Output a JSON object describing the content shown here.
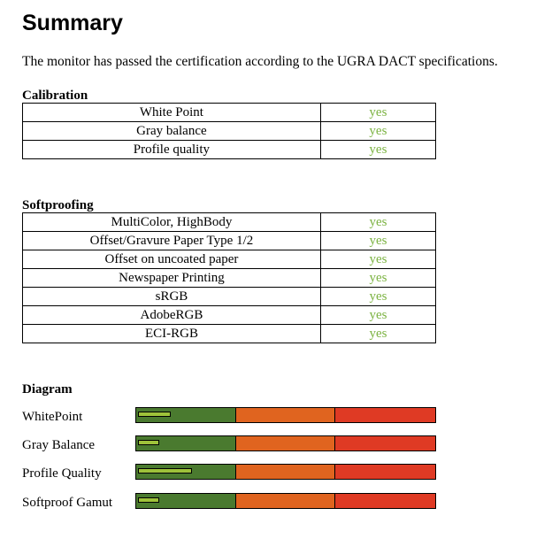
{
  "title": "Summary",
  "intro": "The monitor has passed the certification according to the UGRA DACT specifications.",
  "calibration": {
    "heading": "Calibration",
    "rows": [
      {
        "label": "White Point",
        "value": "yes"
      },
      {
        "label": "Gray balance",
        "value": "yes"
      },
      {
        "label": "Profile quality",
        "value": "yes"
      }
    ]
  },
  "softproofing": {
    "heading": "Softproofing",
    "rows": [
      {
        "label": "MultiColor, HighBody",
        "value": "yes"
      },
      {
        "label": "Offset/Gravure Paper Type 1/2",
        "value": "yes"
      },
      {
        "label": "Offset on uncoated paper",
        "value": "yes"
      },
      {
        "label": "Newspaper Printing",
        "value": "yes"
      },
      {
        "label": "sRGB",
        "value": "yes"
      },
      {
        "label": "AdobeRGB",
        "value": "yes"
      },
      {
        "label": "ECI-RGB",
        "value": "yes"
      }
    ]
  },
  "diagram": {
    "heading": "Diagram",
    "zone_colors": {
      "green": "#4a7a2f",
      "orange": "#e0641f",
      "red": "#df3a24"
    },
    "indicator_color": "#9ec23a",
    "items": [
      {
        "label": "WhitePoint",
        "level": 0.11
      },
      {
        "label": "Gray Balance",
        "level": 0.07
      },
      {
        "label": "Profile Quality",
        "level": 0.18
      },
      {
        "label": "Softproof Gamut",
        "level": 0.07
      }
    ]
  }
}
